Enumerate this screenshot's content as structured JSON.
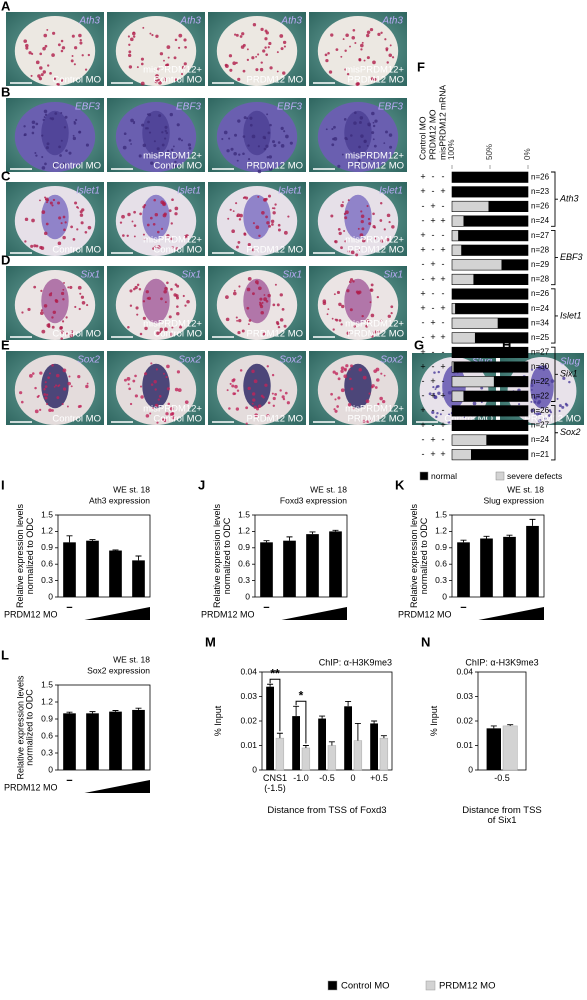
{
  "rows": [
    {
      "letter": "A",
      "gene": "Ath3"
    },
    {
      "letter": "B",
      "gene": "EBF3"
    },
    {
      "letter": "C",
      "gene": "Islet1"
    },
    {
      "letter": "D",
      "gene": "Six1"
    },
    {
      "letter": "E",
      "gene": "Sox2"
    }
  ],
  "conditions": [
    [
      "Control MO"
    ],
    [
      "misPRDM12+",
      "Control MO"
    ],
    [
      "PRDM12 MO"
    ],
    [
      "misPRDM12+",
      "PRDM12 MO"
    ]
  ],
  "side_panels": [
    {
      "letter": "G",
      "gene": "Slug",
      "condition": "Control MO"
    },
    {
      "letter": "H",
      "gene": "Slug",
      "condition": "PRDM12 MO"
    }
  ],
  "chart_data": [
    {
      "type": "stacked_barh",
      "letter": "F",
      "column_headers": [
        "Control MO",
        "PRDM12 MO",
        "misPRDM12 mRNA"
      ],
      "signs": [
        [
          "+",
          "-",
          "-"
        ],
        [
          "+",
          "-",
          "+"
        ],
        [
          "-",
          "+",
          "-"
        ],
        [
          "-",
          "+",
          "+"
        ],
        [
          "+",
          "-",
          "-"
        ],
        [
          "+",
          "-",
          "+"
        ],
        [
          "-",
          "+",
          "-"
        ],
        [
          "-",
          "+",
          "+"
        ],
        [
          "+",
          "-",
          "-"
        ],
        [
          "+",
          "-",
          "+"
        ],
        [
          "-",
          "+",
          "-"
        ],
        [
          "-",
          "+",
          "+"
        ],
        [
          "+",
          "-",
          "-"
        ],
        [
          "+",
          "-",
          "+"
        ],
        [
          "-",
          "+",
          "-"
        ],
        [
          "-",
          "+",
          "+"
        ],
        [
          "+",
          "-",
          "-"
        ],
        [
          "+",
          "-",
          "+"
        ],
        [
          "-",
          "+",
          "-"
        ],
        [
          "-",
          "+",
          "+"
        ]
      ],
      "n_labels": [
        "n=26",
        "n=23",
        "n=26",
        "n=24",
        "n=27",
        "n=28",
        "n=29",
        "n=28",
        "n=26",
        "n=24",
        "n=34",
        "n=25",
        "n=27",
        "n=30",
        "n=22",
        "n=22",
        "n=26",
        "n=27",
        "n=24",
        "n=21"
      ],
      "groups": [
        "Ath3",
        "EBF3",
        "Islet1",
        "Six1",
        "Sox2"
      ],
      "xlim": [
        100,
        0
      ],
      "xticks": [
        {
          "value": 100,
          "label": "100%"
        },
        {
          "value": 50,
          "label": "50%"
        },
        {
          "value": 0,
          "label": "0%"
        }
      ],
      "series": [
        {
          "name": "normal",
          "color": "#000000",
          "values": [
            100,
            100,
            52,
            85,
            92,
            88,
            35,
            72,
            100,
            96,
            40,
            70,
            100,
            98,
            45,
            85,
            100,
            100,
            55,
            75
          ]
        },
        {
          "name": "severe defects",
          "color": "#d3d3d3",
          "values": [
            0,
            0,
            48,
            15,
            8,
            12,
            65,
            28,
            0,
            4,
            60,
            30,
            0,
            2,
            55,
            15,
            0,
            0,
            45,
            25
          ]
        }
      ]
    },
    {
      "type": "bar",
      "letter": "I",
      "title": "WE st. 18",
      "subtitle": "Ath3 expression",
      "ylabel": "Relative expression levels normalized to ODC",
      "xlabel": "PRDM12 MO",
      "categories": [
        "−",
        null,
        null,
        null
      ],
      "values": [
        1.0,
        1.03,
        0.85,
        0.67
      ],
      "errors": [
        0.12,
        0.02,
        0.01,
        0.08
      ],
      "color": "#000000",
      "ylim": [
        0,
        1.5
      ],
      "yticks": [
        0,
        0.3,
        0.6,
        0.9,
        1.2,
        1.5
      ]
    },
    {
      "type": "bar",
      "letter": "J",
      "title": "WE st. 18",
      "subtitle": "Foxd3 expression",
      "ylabel": "Relative expression levels normalized to ODC",
      "xlabel": "PRDM12 MO",
      "categories": [
        "−",
        null,
        null,
        null
      ],
      "values": [
        1.0,
        1.03,
        1.15,
        1.2
      ],
      "errors": [
        0.03,
        0.07,
        0.04,
        0.02
      ],
      "color": "#000000",
      "ylim": [
        0,
        1.5
      ],
      "yticks": [
        0,
        0.3,
        0.6,
        0.9,
        1.2,
        1.5
      ]
    },
    {
      "type": "bar",
      "letter": "K",
      "title": "WE st. 18",
      "subtitle": "Slug expression",
      "ylabel": "Relative expression levels normalized to ODC",
      "xlabel": "PRDM12 MO",
      "categories": [
        "−",
        null,
        null,
        null
      ],
      "values": [
        1.0,
        1.07,
        1.1,
        1.3
      ],
      "errors": [
        0.04,
        0.04,
        0.03,
        0.12
      ],
      "color": "#000000",
      "ylim": [
        0,
        1.5
      ],
      "yticks": [
        0,
        0.3,
        0.6,
        0.9,
        1.2,
        1.5
      ]
    },
    {
      "type": "bar",
      "letter": "L",
      "title": "WE st. 18",
      "subtitle": "Sox2 expression",
      "ylabel": "Relative expression levels normalized to ODC",
      "xlabel": "PRDM12 MO",
      "categories": [
        "−",
        null,
        null,
        null
      ],
      "values": [
        1.0,
        1.0,
        1.03,
        1.06
      ],
      "errors": [
        0.02,
        0.03,
        0.02,
        0.03
      ],
      "color": "#000000",
      "ylim": [
        0,
        1.5
      ],
      "yticks": [
        0,
        0.3,
        0.6,
        0.9,
        1.2,
        1.5
      ]
    },
    {
      "type": "grouped_bar",
      "letter": "M",
      "title": "ChIP: α-H3K9me3",
      "ylabel": "% Input",
      "xlabel": "Distance from TSS of Foxd3",
      "categories": [
        "CNS1 (-1.5)",
        "-1.0",
        "-0.5",
        "0",
        "+0.5"
      ],
      "series": [
        {
          "name": "Control MO",
          "color": "#000000",
          "values": [
            0.034,
            0.022,
            0.021,
            0.026,
            0.019
          ],
          "errors": [
            0.001,
            0.004,
            0.001,
            0.002,
            0.001
          ]
        },
        {
          "name": "PRDM12 MO",
          "color": "#d3d3d3",
          "values": [
            0.013,
            0.009,
            0.01,
            0.012,
            0.013
          ],
          "errors": [
            0.002,
            0.001,
            0.0015,
            0.007,
            0.001
          ]
        }
      ],
      "annotations": [
        "**",
        "*"
      ],
      "ylim": [
        0,
        0.04
      ],
      "yticks": [
        0,
        0.01,
        0.02,
        0.03,
        0.04
      ]
    },
    {
      "type": "grouped_bar",
      "letter": "N",
      "title": "ChIP: α-H3K9me3",
      "ylabel": "% Input",
      "xlabel": "Distance from TSS of Six1",
      "categories": [
        "-0.5"
      ],
      "series": [
        {
          "name": "Control MO",
          "color": "#000000",
          "values": [
            0.017
          ],
          "errors": [
            0.001
          ]
        },
        {
          "name": "PRDM12 MO",
          "color": "#d3d3d3",
          "values": [
            0.018
          ],
          "errors": [
            0.0005
          ]
        }
      ],
      "annotations": [],
      "ylim": [
        0,
        0.04
      ],
      "yticks": [
        0,
        0.01,
        0.02,
        0.03,
        0.04
      ]
    }
  ]
}
